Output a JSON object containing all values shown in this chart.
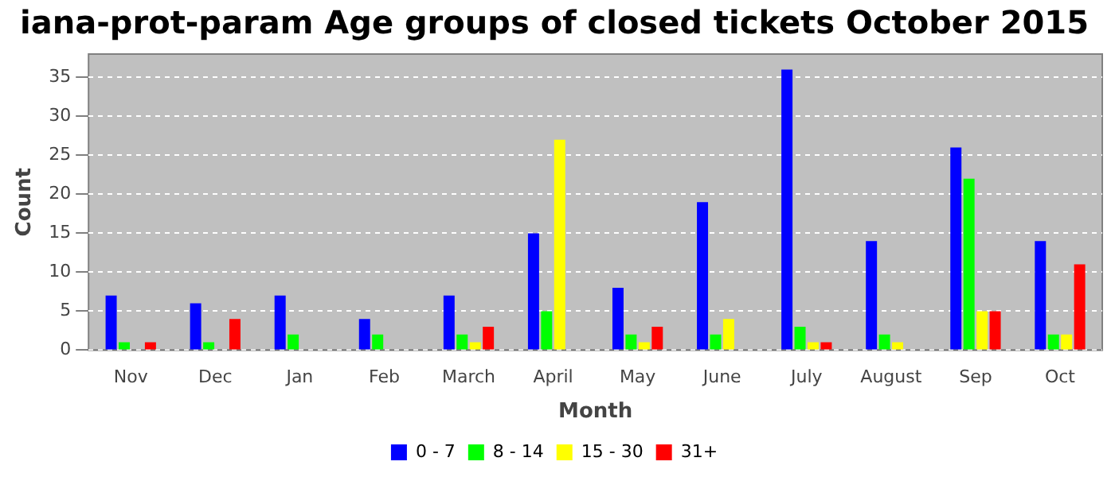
{
  "chart_data": {
    "type": "bar",
    "title": "iana-prot-param Age groups of closed tickets October 2015",
    "xlabel": "Month",
    "ylabel": "Count",
    "categories": [
      "Nov",
      "Dec",
      "Jan",
      "Feb",
      "March",
      "April",
      "May",
      "June",
      "July",
      "August",
      "Sep",
      "Oct"
    ],
    "series": [
      {
        "name": "0 - 7",
        "color": "#0000ff",
        "values": [
          7,
          6,
          7,
          4,
          7,
          15,
          8,
          19,
          36,
          14,
          26,
          14
        ]
      },
      {
        "name": "8 - 14",
        "color": "#00ff00",
        "values": [
          1,
          1,
          2,
          2,
          2,
          5,
          2,
          2,
          3,
          2,
          22,
          2
        ]
      },
      {
        "name": "15 - 30",
        "color": "#ffff00",
        "values": [
          0,
          0,
          0,
          0,
          1,
          27,
          1,
          4,
          1,
          1,
          5,
          2
        ]
      },
      {
        "name": "31+",
        "color": "#ff0000",
        "values": [
          1,
          4,
          0,
          0,
          3,
          0,
          3,
          0,
          1,
          0,
          5,
          11
        ]
      }
    ],
    "ylim": [
      0,
      38
    ],
    "yticks": [
      0,
      5,
      10,
      15,
      20,
      25,
      30,
      35
    ],
    "grid": "y",
    "legend": "bottom"
  }
}
